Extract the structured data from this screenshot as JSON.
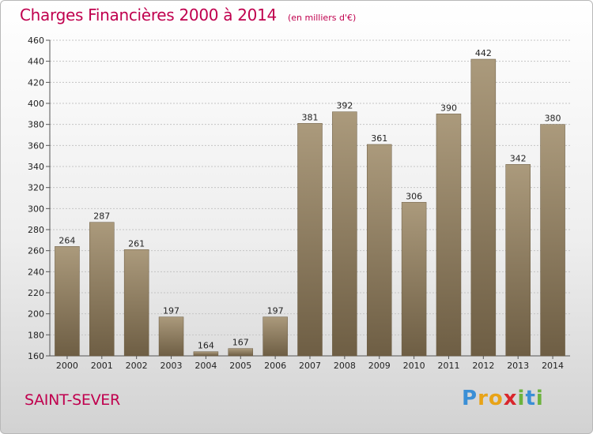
{
  "chart_data": {
    "type": "bar",
    "title": "Charges Financières 2000 à 2014",
    "subtitle": "(en milliers d'€)",
    "categories": [
      "2000",
      "2001",
      "2002",
      "2003",
      "2004",
      "2005",
      "2006",
      "2007",
      "2008",
      "2009",
      "2010",
      "2011",
      "2012",
      "2013",
      "2014"
    ],
    "values": [
      264,
      287,
      261,
      197,
      164,
      167,
      197,
      381,
      392,
      361,
      306,
      390,
      442,
      342,
      380
    ],
    "ylim": [
      160,
      460
    ],
    "yticks": [
      160,
      180,
      200,
      220,
      240,
      260,
      280,
      300,
      320,
      340,
      360,
      380,
      400,
      420,
      440,
      460
    ],
    "grid": true,
    "bar_color": "#8b7a5e",
    "xlabel": "",
    "ylabel": ""
  },
  "commune": "SAINT-SEVER",
  "logo": {
    "letters": [
      "P",
      "r",
      "o",
      "x",
      "i",
      "t",
      "i"
    ],
    "colors": [
      "#3a8fd6",
      "#e8a317",
      "#e8a317",
      "#d9262c",
      "#6cb33e",
      "#3a8fd6",
      "#6cb33e"
    ]
  }
}
